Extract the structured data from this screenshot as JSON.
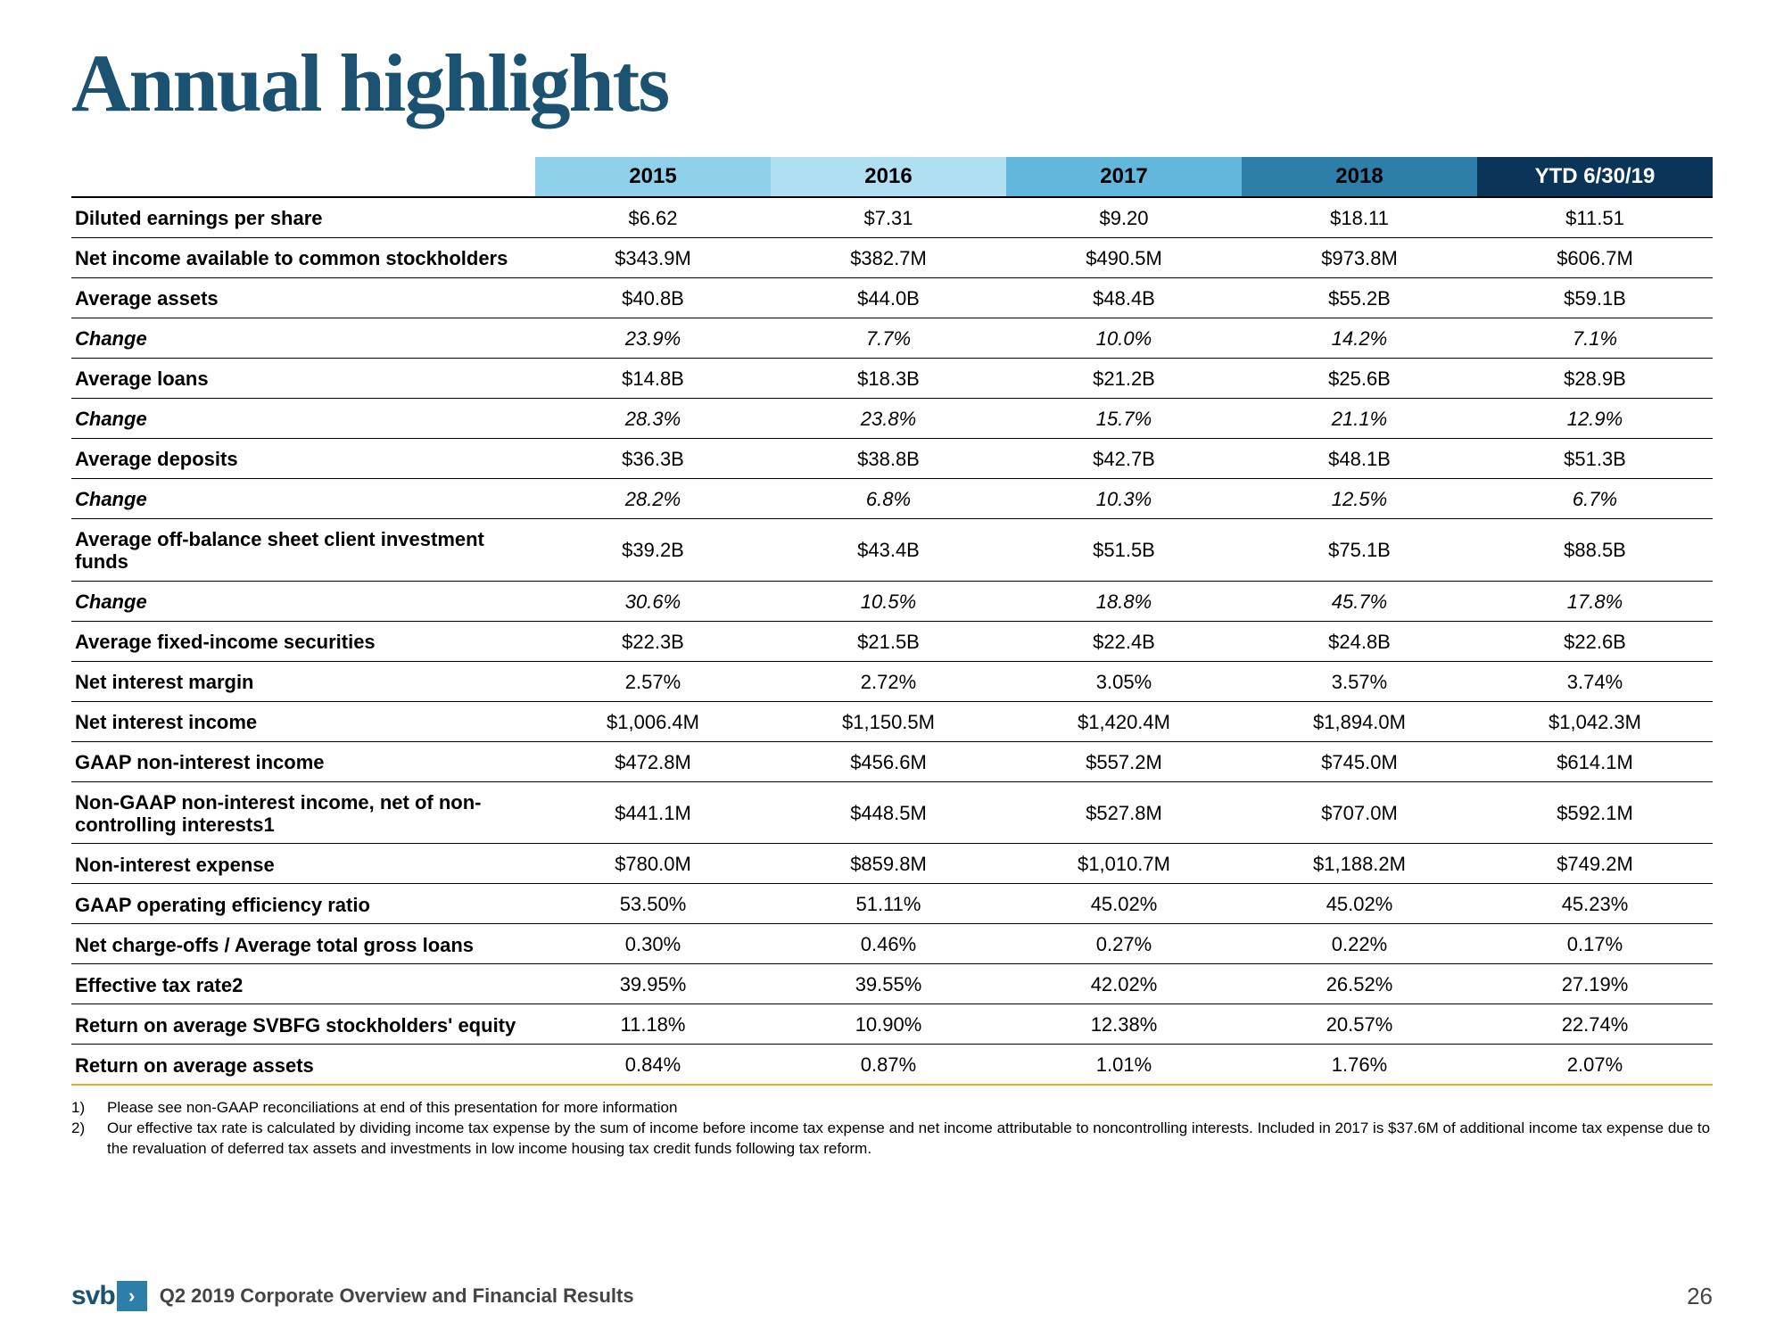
{
  "title": "Annual highlights",
  "header_colors": [
    "#8fd0eb",
    "#b0dff1",
    "#62b7dc",
    "#2e7eaa",
    "#0a3559"
  ],
  "columns": [
    "2015",
    "2016",
    "2017",
    "2018",
    "YTD 6/30/19"
  ],
  "rows": [
    {
      "label": "Diluted earnings per share",
      "italic": false,
      "values": [
        "$6.62",
        "$7.31",
        "$9.20",
        "$18.11",
        "$11.51"
      ]
    },
    {
      "label": "Net income available to common stockholders",
      "italic": false,
      "values": [
        "$343.9M",
        "$382.7M",
        "$490.5M",
        "$973.8M",
        "$606.7M"
      ]
    },
    {
      "label": "Average assets",
      "italic": false,
      "values": [
        "$40.8B",
        "$44.0B",
        "$48.4B",
        "$55.2B",
        "$59.1B"
      ]
    },
    {
      "label": "Change",
      "italic": true,
      "values": [
        "23.9%",
        "7.7%",
        "10.0%",
        "14.2%",
        "7.1%"
      ]
    },
    {
      "label": "Average loans",
      "italic": false,
      "values": [
        "$14.8B",
        "$18.3B",
        "$21.2B",
        "$25.6B",
        "$28.9B"
      ]
    },
    {
      "label": "Change",
      "italic": true,
      "values": [
        "28.3%",
        "23.8%",
        "15.7%",
        "21.1%",
        "12.9%"
      ]
    },
    {
      "label": "Average deposits",
      "italic": false,
      "values": [
        "$36.3B",
        "$38.8B",
        "$42.7B",
        "$48.1B",
        "$51.3B"
      ]
    },
    {
      "label": "Change",
      "italic": true,
      "values": [
        "28.2%",
        "6.8%",
        "10.3%",
        "12.5%",
        "6.7%"
      ]
    },
    {
      "label": "Average off-balance sheet client investment funds",
      "italic": false,
      "values": [
        "$39.2B",
        "$43.4B",
        "$51.5B",
        "$75.1B",
        "$88.5B"
      ]
    },
    {
      "label": "Change",
      "italic": true,
      "values": [
        "30.6%",
        "10.5%",
        "18.8%",
        "45.7%",
        "17.8%"
      ]
    },
    {
      "label": "Average fixed-income securities",
      "italic": false,
      "values": [
        "$22.3B",
        "$21.5B",
        "$22.4B",
        "$24.8B",
        "$22.6B"
      ]
    },
    {
      "label": "Net interest margin",
      "italic": false,
      "values": [
        "2.57%",
        "2.72%",
        "3.05%",
        "3.57%",
        "3.74%"
      ]
    },
    {
      "label": "Net interest income",
      "italic": false,
      "values": [
        "$1,006.4M",
        "$1,150.5M",
        "$1,420.4M",
        "$1,894.0M",
        "$1,042.3M"
      ]
    },
    {
      "label": "GAAP non-interest income",
      "italic": false,
      "values": [
        "$472.8M",
        "$456.6M",
        "$557.2M",
        "$745.0M",
        "$614.1M"
      ]
    },
    {
      "label": "Non-GAAP non-interest income, net of non-controlling interests1",
      "italic": false,
      "values": [
        "$441.1M",
        "$448.5M",
        "$527.8M",
        "$707.0M",
        "$592.1M"
      ]
    },
    {
      "label": "Non-interest expense",
      "italic": false,
      "values": [
        "$780.0M",
        "$859.8M",
        "$1,010.7M",
        "$1,188.2M",
        "$749.2M"
      ]
    },
    {
      "label": "GAAP operating efficiency ratio",
      "italic": false,
      "values": [
        "53.50%",
        "51.11%",
        "45.02%",
        "45.02%",
        "45.23%"
      ]
    },
    {
      "label": "Net charge-offs / Average total gross loans",
      "italic": false,
      "values": [
        "0.30%",
        "0.46%",
        "0.27%",
        "0.22%",
        "0.17%"
      ]
    },
    {
      "label": "Effective tax rate2",
      "italic": false,
      "values": [
        "39.95%",
        "39.55%",
        "42.02%",
        "26.52%",
        "27.19%"
      ]
    },
    {
      "label": "Return on average SVBFG stockholders' equity",
      "italic": false,
      "values": [
        "11.18%",
        "10.90%",
        "12.38%",
        "20.57%",
        "22.74%"
      ]
    },
    {
      "label": "Return on average assets",
      "italic": false,
      "values": [
        "0.84%",
        "0.87%",
        "1.01%",
        "1.76%",
        "2.07%"
      ]
    }
  ],
  "footnotes": [
    {
      "num": "1)",
      "text": "Please see non-GAAP reconciliations at end of this presentation for more information"
    },
    {
      "num": "2)",
      "text": "Our effective tax rate is calculated by dividing income tax expense by the sum of income before income tax expense and net income attributable to noncontrolling interests. Included in 2017 is $37.6M of additional income tax expense due to the revaluation of deferred tax assets and investments in low income housing tax credit funds following tax reform."
    }
  ],
  "footer": {
    "logo_text": "svb",
    "caption": "Q2 2019 Corporate Overview and Financial Results",
    "page": "26"
  }
}
